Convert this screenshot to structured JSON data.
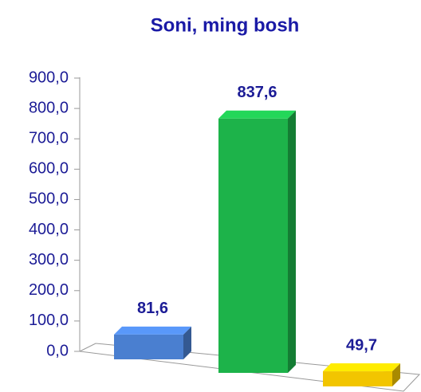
{
  "chart_data": {
    "type": "bar3d",
    "title": "Soni, ming bosh",
    "categories": [
      null,
      null,
      null
    ],
    "values": [
      81.6,
      837.6,
      49.7
    ],
    "value_labels": [
      "81,6",
      "837,6",
      "49,7"
    ],
    "colors": [
      "#4a7fd0",
      "#1db34a",
      "#f2c500"
    ],
    "ylim": [
      0,
      900
    ],
    "yticks": [
      {
        "value": 0,
        "label": "0,0"
      },
      {
        "value": 100,
        "label": "100,0"
      },
      {
        "value": 200,
        "label": "200,0"
      },
      {
        "value": 300,
        "label": "300,0"
      },
      {
        "value": 400,
        "label": "400,0"
      },
      {
        "value": 500,
        "label": "500,0"
      },
      {
        "value": 600,
        "label": "600,0"
      },
      {
        "value": 700,
        "label": "700,0"
      },
      {
        "value": 800,
        "label": "800,0"
      },
      {
        "value": 900,
        "label": "900,0"
      }
    ]
  }
}
